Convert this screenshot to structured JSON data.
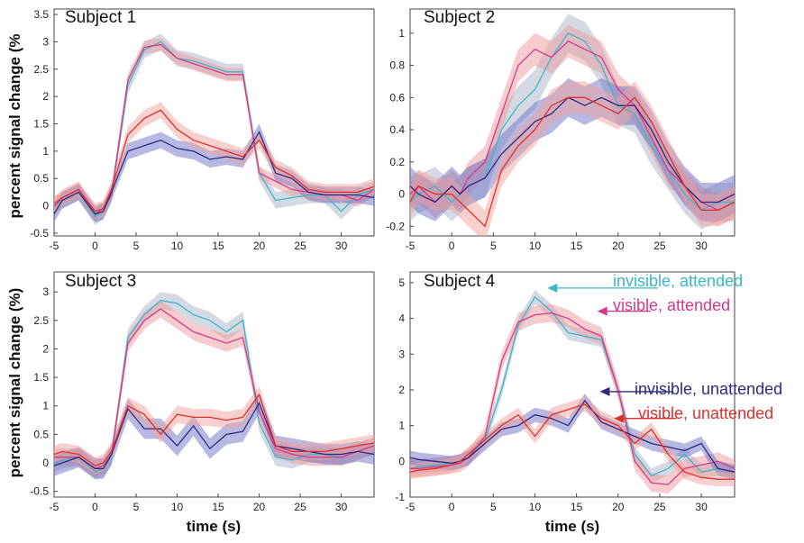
{
  "series_meta": [
    {
      "key": "inv_att",
      "label": "invisible, attended",
      "line": "#3BB8C8",
      "band": "#A9B4C8"
    },
    {
      "key": "vis_att",
      "label": "visible, attended",
      "line": "#D6398A",
      "band": "#EE9A9E"
    },
    {
      "key": "inv_un",
      "label": "invisible, unattended",
      "line": "#2E2A82",
      "band": "#6F74C8"
    },
    {
      "key": "vis_un",
      "label": "visible, unattended",
      "line": "#E0302C",
      "band": "#F2A29C"
    }
  ],
  "chart_data": [
    {
      "type": "line",
      "title": "Subject 1",
      "ylabel": "percent signal change (%",
      "xlabel": "",
      "xlim": [
        -5,
        34
      ],
      "ylim": [
        -0.55,
        3.6
      ],
      "xticks": [
        -5,
        0,
        5,
        10,
        15,
        20,
        25,
        30
      ],
      "yticks": [
        -0.5,
        0,
        0.5,
        1,
        1.5,
        2,
        2.5,
        3,
        3.5
      ],
      "yticklabels": [
        "-0.5",
        "0",
        "0.5",
        "1",
        "1.5",
        "2",
        "2.5",
        "3",
        "3.5"
      ],
      "x": [
        -5,
        -4,
        -2,
        0,
        1,
        2,
        4,
        6,
        8,
        10,
        12,
        14,
        16,
        18,
        20,
        22,
        24,
        26,
        28,
        30,
        32,
        34
      ],
      "series": [
        {
          "key": "inv_att",
          "values": [
            0.0,
            0.1,
            0.25,
            -0.2,
            -0.1,
            0.2,
            2.2,
            2.85,
            3.0,
            2.7,
            2.65,
            2.55,
            2.45,
            2.45,
            0.6,
            0.1,
            0.15,
            0.2,
            0.2,
            -0.1,
            0.2,
            0.3
          ],
          "err": [
            0.15,
            0.15,
            0.15,
            0.15,
            0.15,
            0.15,
            0.15,
            0.15,
            0.15,
            0.15,
            0.15,
            0.15,
            0.15,
            0.15,
            0.15,
            0.15,
            0.15,
            0.15,
            0.15,
            0.15,
            0.15,
            0.15
          ]
        },
        {
          "key": "vis_att",
          "values": [
            0.05,
            0.15,
            0.3,
            -0.15,
            -0.05,
            0.2,
            2.3,
            2.9,
            2.95,
            2.7,
            2.6,
            2.5,
            2.4,
            2.4,
            0.6,
            0.45,
            0.3,
            0.25,
            0.2,
            0.2,
            0.1,
            0.3
          ],
          "err": [
            0.12,
            0.12,
            0.12,
            0.12,
            0.12,
            0.12,
            0.12,
            0.12,
            0.12,
            0.12,
            0.12,
            0.12,
            0.12,
            0.12,
            0.12,
            0.12,
            0.12,
            0.12,
            0.12,
            0.12,
            0.12,
            0.12
          ]
        },
        {
          "key": "inv_un",
          "values": [
            -0.15,
            0.1,
            0.25,
            -0.15,
            -0.1,
            0.25,
            1.0,
            1.1,
            1.2,
            1.05,
            1.0,
            0.85,
            0.9,
            0.85,
            1.35,
            0.6,
            0.5,
            0.25,
            0.2,
            0.2,
            0.2,
            0.15
          ],
          "err": [
            0.15,
            0.15,
            0.15,
            0.15,
            0.15,
            0.15,
            0.15,
            0.15,
            0.15,
            0.15,
            0.15,
            0.15,
            0.15,
            0.15,
            0.15,
            0.15,
            0.15,
            0.15,
            0.15,
            0.15,
            0.15,
            0.15
          ]
        },
        {
          "key": "vis_un",
          "values": [
            0.0,
            0.15,
            0.3,
            -0.1,
            -0.05,
            0.3,
            1.3,
            1.6,
            1.75,
            1.4,
            1.2,
            1.1,
            1.0,
            0.9,
            1.2,
            0.7,
            0.55,
            0.3,
            0.25,
            0.25,
            0.25,
            0.35
          ],
          "err": [
            0.15,
            0.15,
            0.15,
            0.15,
            0.15,
            0.15,
            0.15,
            0.15,
            0.15,
            0.15,
            0.15,
            0.15,
            0.15,
            0.15,
            0.15,
            0.15,
            0.15,
            0.15,
            0.15,
            0.15,
            0.15,
            0.15
          ]
        }
      ]
    },
    {
      "type": "line",
      "title": "Subject 2",
      "ylabel": "",
      "xlabel": "",
      "xlim": [
        -5,
        34
      ],
      "ylim": [
        -0.26,
        1.15
      ],
      "xticks": [
        -5,
        0,
        5,
        10,
        15,
        20,
        25,
        30
      ],
      "yticks": [
        -0.2,
        0,
        0.2,
        0.4,
        0.6,
        0.8,
        1
      ],
      "yticklabels": [
        "-0.2",
        "0",
        "0.2",
        "0.4",
        "0.6",
        "0.8",
        "1"
      ],
      "x": [
        -5,
        -4,
        -2,
        0,
        1,
        2,
        4,
        6,
        8,
        10,
        12,
        14,
        16,
        18,
        20,
        22,
        24,
        26,
        28,
        30,
        32,
        34
      ],
      "series": [
        {
          "key": "inv_att",
          "values": [
            -0.05,
            0.0,
            0.05,
            -0.05,
            0.0,
            0.05,
            0.1,
            0.4,
            0.55,
            0.65,
            0.85,
            1.0,
            0.95,
            0.8,
            0.55,
            0.5,
            0.3,
            0.15,
            0.0,
            -0.1,
            -0.05,
            -0.05
          ],
          "err": [
            0.12,
            0.12,
            0.12,
            0.12,
            0.12,
            0.12,
            0.12,
            0.12,
            0.12,
            0.12,
            0.12,
            0.12,
            0.12,
            0.12,
            0.12,
            0.12,
            0.12,
            0.12,
            0.12,
            0.12,
            0.12,
            0.12
          ]
        },
        {
          "key": "vis_att",
          "values": [
            0.0,
            0.05,
            -0.05,
            0.05,
            0.0,
            0.1,
            0.2,
            0.5,
            0.8,
            0.9,
            0.85,
            0.95,
            0.9,
            0.85,
            0.65,
            0.55,
            0.35,
            0.15,
            0.05,
            -0.05,
            -0.1,
            -0.05
          ],
          "err": [
            0.1,
            0.1,
            0.1,
            0.1,
            0.1,
            0.1,
            0.1,
            0.1,
            0.1,
            0.1,
            0.1,
            0.1,
            0.1,
            0.1,
            0.1,
            0.1,
            0.1,
            0.1,
            0.1,
            0.1,
            0.1,
            0.1
          ]
        },
        {
          "key": "inv_un",
          "values": [
            0.05,
            0.0,
            -0.05,
            0.05,
            0.0,
            0.05,
            0.1,
            0.25,
            0.35,
            0.45,
            0.5,
            0.6,
            0.55,
            0.6,
            0.55,
            0.55,
            0.4,
            0.2,
            0.05,
            -0.05,
            -0.05,
            0.0
          ],
          "err": [
            0.12,
            0.12,
            0.12,
            0.12,
            0.12,
            0.12,
            0.12,
            0.12,
            0.12,
            0.12,
            0.12,
            0.12,
            0.12,
            0.12,
            0.12,
            0.12,
            0.12,
            0.12,
            0.12,
            0.12,
            0.12,
            0.12
          ]
        },
        {
          "key": "vis_un",
          "values": [
            -0.05,
            0.05,
            0.0,
            0.0,
            -0.05,
            -0.1,
            -0.2,
            0.15,
            0.3,
            0.4,
            0.55,
            0.6,
            0.6,
            0.55,
            0.5,
            0.6,
            0.45,
            0.25,
            0.05,
            -0.1,
            -0.1,
            -0.05
          ],
          "err": [
            0.1,
            0.1,
            0.1,
            0.1,
            0.1,
            0.1,
            0.1,
            0.1,
            0.1,
            0.1,
            0.1,
            0.1,
            0.1,
            0.1,
            0.1,
            0.1,
            0.1,
            0.1,
            0.1,
            0.1,
            0.1,
            0.1
          ]
        }
      ]
    },
    {
      "type": "line",
      "title": "Subject 3",
      "ylabel": "percent signal change (%)",
      "xlabel": "time (s)",
      "xlim": [
        -5,
        34
      ],
      "ylim": [
        -0.6,
        3.35
      ],
      "xticks": [
        -5,
        0,
        5,
        10,
        15,
        20,
        25,
        30
      ],
      "yticks": [
        -0.5,
        0,
        0.5,
        1,
        1.5,
        2,
        2.5,
        3
      ],
      "yticklabels": [
        "-0.5",
        "0",
        "0.5",
        "1",
        "1.5",
        "2",
        "2.5",
        "3"
      ],
      "x": [
        -5,
        -4,
        -2,
        0,
        1,
        2,
        4,
        6,
        8,
        10,
        12,
        14,
        16,
        18,
        20,
        22,
        24,
        26,
        28,
        30,
        32,
        34
      ],
      "series": [
        {
          "key": "inv_att",
          "values": [
            0.0,
            0.05,
            0.1,
            -0.15,
            -0.1,
            0.1,
            2.2,
            2.6,
            2.85,
            2.8,
            2.6,
            2.5,
            2.3,
            2.5,
            0.7,
            0.1,
            0.05,
            0.15,
            0.15,
            0.1,
            0.2,
            0.3
          ],
          "err": [
            0.15,
            0.15,
            0.15,
            0.15,
            0.15,
            0.15,
            0.15,
            0.15,
            0.15,
            0.15,
            0.15,
            0.15,
            0.15,
            0.15,
            0.15,
            0.15,
            0.15,
            0.15,
            0.15,
            0.15,
            0.15,
            0.15
          ]
        },
        {
          "key": "vis_att",
          "values": [
            0.1,
            0.1,
            0.1,
            -0.1,
            -0.05,
            0.15,
            2.1,
            2.5,
            2.7,
            2.5,
            2.3,
            2.2,
            2.1,
            2.2,
            0.9,
            0.25,
            0.15,
            0.1,
            0.1,
            0.1,
            0.2,
            0.3
          ],
          "err": [
            0.15,
            0.15,
            0.15,
            0.15,
            0.15,
            0.15,
            0.15,
            0.15,
            0.15,
            0.15,
            0.15,
            0.15,
            0.15,
            0.15,
            0.15,
            0.15,
            0.15,
            0.15,
            0.15,
            0.15,
            0.15,
            0.15
          ]
        },
        {
          "key": "inv_un",
          "values": [
            -0.05,
            0.0,
            0.1,
            -0.1,
            -0.1,
            0.15,
            0.95,
            0.6,
            0.6,
            0.3,
            0.65,
            0.25,
            0.5,
            0.55,
            1.05,
            0.3,
            0.25,
            0.2,
            0.15,
            0.15,
            0.2,
            0.15
          ],
          "err": [
            0.18,
            0.18,
            0.18,
            0.18,
            0.18,
            0.18,
            0.18,
            0.18,
            0.18,
            0.18,
            0.18,
            0.18,
            0.18,
            0.18,
            0.18,
            0.18,
            0.18,
            0.18,
            0.18,
            0.18,
            0.18,
            0.18
          ]
        },
        {
          "key": "vis_un",
          "values": [
            0.15,
            0.2,
            0.15,
            -0.05,
            0.0,
            0.2,
            1.0,
            0.85,
            0.5,
            0.85,
            0.8,
            0.8,
            0.75,
            0.8,
            1.2,
            0.3,
            0.2,
            0.2,
            0.2,
            0.25,
            0.3,
            0.35
          ],
          "err": [
            0.15,
            0.15,
            0.15,
            0.15,
            0.15,
            0.15,
            0.15,
            0.15,
            0.15,
            0.15,
            0.15,
            0.15,
            0.15,
            0.15,
            0.15,
            0.15,
            0.15,
            0.15,
            0.15,
            0.15,
            0.15,
            0.15
          ]
        }
      ]
    },
    {
      "type": "line",
      "title": "Subject 4",
      "ylabel": "",
      "xlabel": "time (s)",
      "xlim": [
        -5,
        34
      ],
      "ylim": [
        -1.0,
        5.3
      ],
      "xticks": [
        -5,
        0,
        5,
        10,
        15,
        20,
        25,
        30
      ],
      "yticks": [
        -1,
        0,
        1,
        2,
        3,
        4,
        5
      ],
      "yticklabels": [
        "-1",
        "0",
        "1",
        "2",
        "3",
        "4",
        "5"
      ],
      "x": [
        -5,
        -4,
        -2,
        0,
        1,
        2,
        4,
        6,
        8,
        10,
        12,
        14,
        16,
        18,
        20,
        22,
        24,
        26,
        28,
        30,
        32,
        34
      ],
      "series": [
        {
          "key": "inv_att",
          "values": [
            -0.2,
            -0.15,
            -0.1,
            -0.05,
            0.0,
            0.1,
            0.6,
            2.0,
            3.8,
            4.6,
            4.2,
            3.6,
            3.5,
            3.4,
            2.0,
            0.2,
            -0.4,
            -0.2,
            0.2,
            -0.3,
            -0.2,
            -0.3
          ],
          "err": [
            0.2,
            0.2,
            0.2,
            0.2,
            0.2,
            0.2,
            0.2,
            0.2,
            0.2,
            0.2,
            0.2,
            0.2,
            0.2,
            0.2,
            0.2,
            0.2,
            0.2,
            0.2,
            0.2,
            0.2,
            0.2,
            0.2
          ]
        },
        {
          "key": "vis_att",
          "values": [
            -0.2,
            -0.2,
            -0.15,
            -0.1,
            -0.05,
            0.1,
            0.7,
            2.8,
            3.9,
            4.1,
            4.15,
            4.0,
            3.7,
            3.5,
            2.0,
            0.0,
            -0.6,
            -0.65,
            -0.2,
            -0.1,
            0.0,
            -0.2
          ],
          "err": [
            0.25,
            0.25,
            0.25,
            0.25,
            0.25,
            0.25,
            0.25,
            0.25,
            0.25,
            0.25,
            0.25,
            0.25,
            0.25,
            0.25,
            0.25,
            0.25,
            0.25,
            0.25,
            0.25,
            0.25,
            0.25,
            0.25
          ]
        },
        {
          "key": "inv_un",
          "values": [
            0.1,
            0.05,
            0.0,
            -0.05,
            0.0,
            0.1,
            0.5,
            0.9,
            1.0,
            1.3,
            1.2,
            1.0,
            1.7,
            1.1,
            0.9,
            0.7,
            0.5,
            0.4,
            0.3,
            0.5,
            -0.2,
            -0.3
          ],
          "err": [
            0.2,
            0.2,
            0.2,
            0.2,
            0.2,
            0.2,
            0.2,
            0.2,
            0.2,
            0.2,
            0.2,
            0.2,
            0.2,
            0.2,
            0.2,
            0.2,
            0.2,
            0.2,
            0.2,
            0.2,
            0.2,
            0.2
          ]
        },
        {
          "key": "vis_un",
          "values": [
            -0.3,
            -0.25,
            -0.2,
            -0.1,
            0.0,
            0.2,
            0.6,
            1.0,
            1.3,
            0.7,
            1.3,
            1.45,
            1.6,
            1.2,
            1.0,
            0.5,
            0.9,
            0.2,
            -0.3,
            -0.45,
            -0.5,
            -0.5
          ],
          "err": [
            0.2,
            0.2,
            0.2,
            0.2,
            0.2,
            0.2,
            0.2,
            0.2,
            0.2,
            0.2,
            0.2,
            0.2,
            0.2,
            0.2,
            0.2,
            0.2,
            0.2,
            0.2,
            0.2,
            0.2,
            0.2,
            0.2
          ]
        }
      ],
      "annotations": [
        {
          "key": "inv_att",
          "text": "invisible, attended",
          "tip_x": 11.5,
          "tip_y": 4.85
        },
        {
          "key": "vis_att",
          "text": "visible, attended",
          "tip_x": 17.5,
          "tip_y": 4.2
        },
        {
          "key": "inv_un",
          "text": "invisible, unattended",
          "tip_x": 17.8,
          "tip_y": 1.95
        },
        {
          "key": "vis_un",
          "text": "visible, unattended",
          "tip_x": 19.5,
          "tip_y": 1.2
        }
      ]
    }
  ]
}
